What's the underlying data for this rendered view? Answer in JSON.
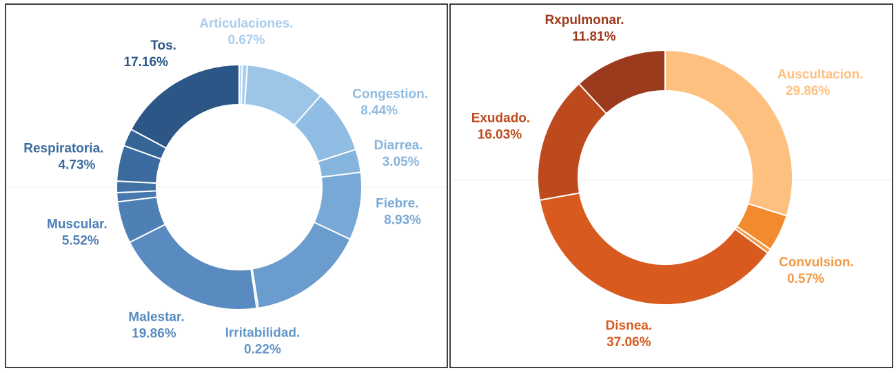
{
  "chart_data": [
    {
      "type": "donut",
      "categories": [
        null,
        "Articulaciones.",
        null,
        "Congestion.",
        "Diarrea.",
        "Fiebre.",
        null,
        "Irritabilidad.",
        "Malestar.",
        "Muscular.",
        null,
        null,
        "Respiratoria.",
        null,
        "Tos."
      ],
      "values": [
        0.4,
        0.67,
        10.5,
        8.44,
        3.05,
        8.93,
        15.5,
        0.22,
        19.86,
        5.52,
        1.2,
        1.5,
        4.73,
        2.32,
        17.16
      ],
      "value_labels": [
        null,
        "0.67%",
        null,
        "8.44%",
        "3.05%",
        "8.93%",
        null,
        "0.22%",
        "19.86%",
        "5.52%",
        null,
        null,
        "4.73%",
        null,
        "17.16%"
      ],
      "colors": [
        "#b7d4ee",
        "#a9cdec",
        "#9cc5e8",
        "#8fbde3",
        "#85b4dd",
        "#77a8d6",
        "#6a9ccd",
        "#6396c8",
        "#5a8bc0",
        "#4f80b5",
        "#4878ad",
        "#4172a6",
        "#3b6b9e",
        "#356496",
        "#2c5686"
      ]
    },
    {
      "type": "donut",
      "categories": [
        "Auscultacion.",
        null,
        "Convulsion.",
        "Disnea.",
        "Exudado.",
        "Rxpulmonar."
      ],
      "values": [
        29.86,
        4.67,
        0.57,
        37.06,
        16.03,
        11.81
      ],
      "value_labels": [
        "29.86%",
        null,
        "0.57%",
        "37.06%",
        "16.03%",
        "11.81%"
      ],
      "colors": [
        "#fdc07f",
        "#f28a2e",
        "#f19a45",
        "#d85a1e",
        "#bd4a1c",
        "#9c3a1d"
      ]
    }
  ]
}
